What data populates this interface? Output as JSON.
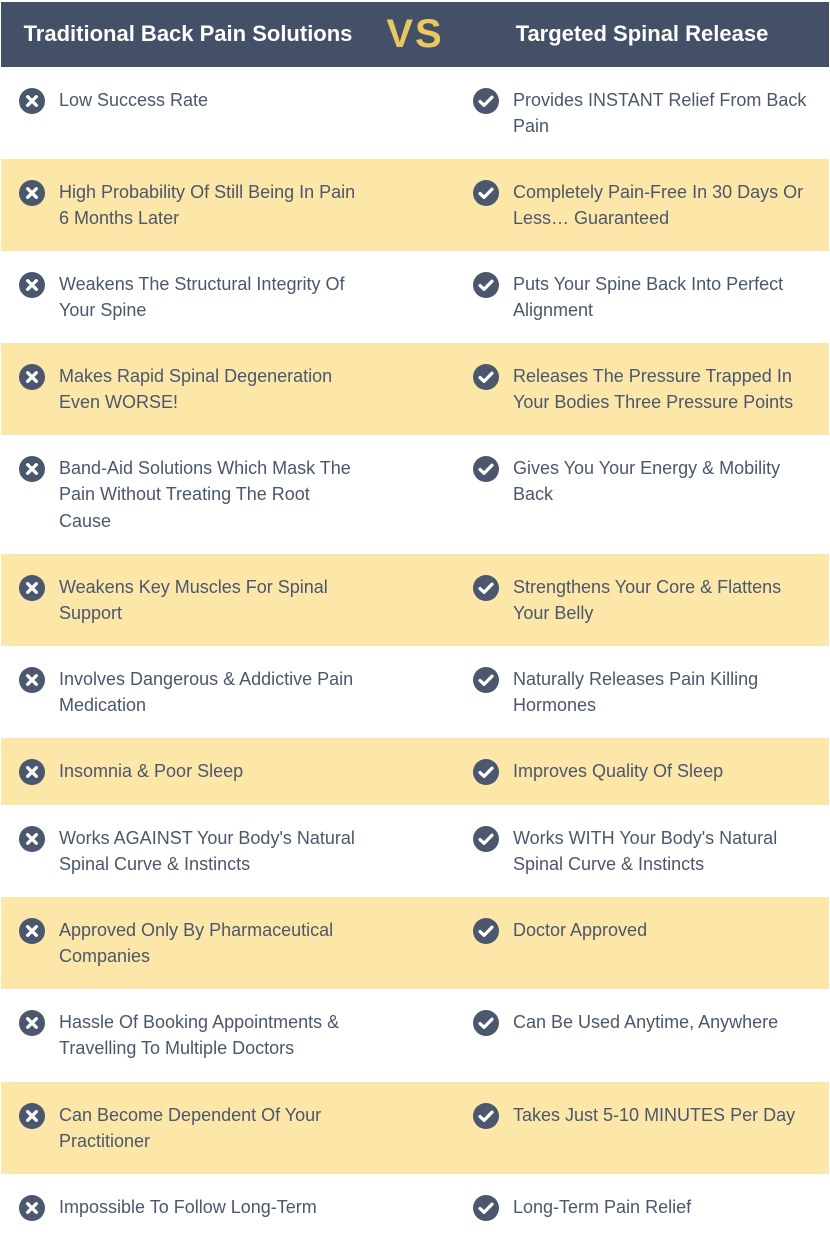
{
  "header": {
    "left_title": "Traditional Back Pain Solutions",
    "vs": "VS",
    "right_title": "Targeted Spinal Release"
  },
  "colors": {
    "header_bg": "#435067",
    "header_text": "#ffffff",
    "vs_text": "#e8c85f",
    "row_bg": "#ffffff",
    "row_alt_bg": "#fce7a8",
    "body_text": "#4b576c",
    "icon_fill": "#4b576c",
    "icon_inner": "#ffffff"
  },
  "icons": {
    "cross_name": "cross-icon",
    "check_name": "check-icon"
  },
  "rows": [
    {
      "left": "Low Success Rate",
      "right": "Provides INSTANT Relief From Back Pain"
    },
    {
      "left": "High Probability Of Still Being In Pain 6 Months Later",
      "right": "Completely Pain-Free In 30 Days Or Less… Guaranteed"
    },
    {
      "left": "Weakens The Structural Integrity Of Your Spine",
      "right": "Puts Your Spine Back Into Perfect Alignment"
    },
    {
      "left": "Makes Rapid Spinal Degeneration Even WORSE!",
      "right": "Releases The Pressure Trapped In Your Bodies Three Pressure Points"
    },
    {
      "left": "Band-Aid Solutions Which Mask The Pain Without Treating The Root Cause",
      "right": "Gives You Your Energy & Mobility Back"
    },
    {
      "left": "Weakens Key Muscles For Spinal Support",
      "right": "Strengthens Your Core & Flattens Your Belly"
    },
    {
      "left": "Involves Dangerous & Addictive Pain Medication",
      "right": "Naturally Releases Pain Killing Hormones"
    },
    {
      "left": "Insomnia & Poor Sleep",
      "right": "Improves Quality Of Sleep"
    },
    {
      "left": "Works AGAINST Your Body's Natural Spinal Curve & Instincts",
      "right": "Works WITH Your Body's Natural Spinal Curve & Instincts"
    },
    {
      "left": "Approved Only By Pharmaceutical Companies",
      "right": "Doctor Approved"
    },
    {
      "left": "Hassle Of Booking Appointments & Travelling To Multiple Doctors",
      "right": "Can Be Used Anytime, Anywhere"
    },
    {
      "left": "Can Become Dependent Of Your Practitioner",
      "right": "Takes Just 5-10 MINUTES Per Day"
    },
    {
      "left": "Impossible To Follow Long-Term",
      "right": "Long-Term Pain Relief"
    }
  ]
}
